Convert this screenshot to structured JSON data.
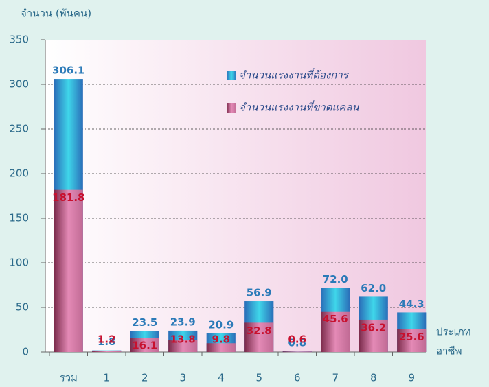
{
  "chart_data": {
    "type": "bar",
    "overlap": true,
    "y_label": "จำนวน (พันคน)",
    "x_label": [
      "ประเภท",
      "อาชีพ"
    ],
    "categories": [
      "รวม",
      "1",
      "2",
      "3",
      "4",
      "5",
      "6",
      "7",
      "8",
      "9"
    ],
    "series": [
      {
        "name": "จำนวนแรงงานที่ต้องการ",
        "color": "#2aa6d6",
        "values": [
          306.1,
          1.8,
          23.5,
          23.9,
          20.9,
          56.9,
          0.8,
          72.0,
          62.0,
          44.3
        ],
        "value_labels": [
          "306.1",
          "1.8",
          "23.5",
          "23.9",
          "20.9",
          "56.9",
          "0.8",
          "72.0",
          "62.0",
          "44.3"
        ]
      },
      {
        "name": "จำนวนแรงงานที่ขาดแคลน",
        "color": "#d97aa8",
        "values": [
          181.8,
          1.2,
          16.1,
          13.8,
          9.8,
          32.8,
          0.6,
          45.6,
          36.2,
          25.6
        ]
      }
    ],
    "ylim": [
      0,
      350
    ],
    "yticks": [
      0,
      50,
      100,
      150,
      200,
      250,
      300,
      350
    ],
    "grid": true,
    "legend": "upper right"
  }
}
